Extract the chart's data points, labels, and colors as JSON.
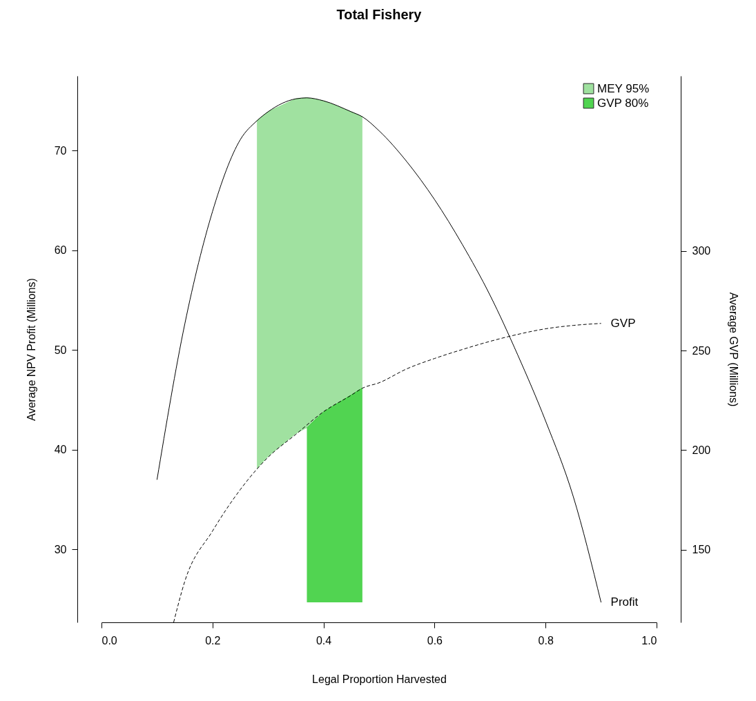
{
  "chart_data": {
    "type": "line",
    "title": "Total Fishery",
    "xlabel": "Legal Proportion Harvested",
    "ylabel": "Average NPV Profit (Millions)",
    "y2label": "Average GVP (Millions)",
    "xlim": [
      0,
      1
    ],
    "xticks": [
      {
        "value": 0,
        "label": "0.0"
      },
      0.2,
      0.4,
      0.6,
      0.8,
      {
        "value": 1,
        "label": "1.0"
      }
    ],
    "ylim": [
      22.7,
      77.5
    ],
    "yticks": [
      30,
      40,
      50,
      60,
      70
    ],
    "y2lim": [
      113.6,
      387.8
    ],
    "y2ticks": [
      150,
      200,
      250,
      300
    ],
    "grid": false,
    "legend": "top right",
    "series": [
      {
        "name": "MEY 95%",
        "color": "#8fdc8f",
        "x": [
          0.28,
          0.3,
          0.35,
          0.37,
          0.4,
          0.45,
          0.47
        ],
        "values": [
          73.0,
          73.9,
          75.2,
          75.3,
          75.0,
          73.9,
          73.4
        ],
        "upper": [
          73.0,
          73.9,
          75.2,
          75.3,
          75.0,
          73.9,
          73.4
        ],
        "lower": [
          38.1,
          39.3,
          41.6,
          42.2,
          43.8,
          45.5,
          46.2
        ]
      },
      {
        "name": "GVP 80%",
        "color": "#32cd32",
        "x": [
          0.37,
          0.4,
          0.45,
          0.47
        ],
        "values": [
          42.2,
          43.8,
          45.5,
          46.2
        ],
        "upper": [
          42.2,
          43.8,
          45.5,
          46.2
        ],
        "lower": [
          24.7,
          24.7,
          24.7,
          24.7
        ]
      },
      {
        "name": "Profit",
        "color": "#000000",
        "line_style": "solid",
        "x": [
          0.1,
          0.15,
          0.2,
          0.25,
          0.28,
          0.3,
          0.35,
          0.37,
          0.4,
          0.45,
          0.47,
          0.5,
          0.55,
          0.6,
          0.65,
          0.7,
          0.75,
          0.8,
          0.85,
          0.9
        ],
        "values": [
          37.0,
          52.6,
          63.9,
          71.1,
          73.0,
          73.9,
          75.2,
          75.3,
          75.0,
          73.9,
          73.4,
          72.0,
          68.9,
          65.1,
          60.6,
          55.5,
          49.5,
          42.9,
          35.3,
          24.7
        ]
      },
      {
        "name": "GVP",
        "color": "#000000",
        "line_style": "dashed",
        "axis": "y2",
        "x": [
          0.13,
          0.15,
          0.2,
          0.25,
          0.28,
          0.3,
          0.35,
          0.4,
          0.45,
          0.47,
          0.5,
          0.55,
          0.6,
          0.65,
          0.7,
          0.75,
          0.8,
          0.85,
          0.9
        ],
        "values": [
          113.6,
          134.1,
          159.4,
          180.2,
          190.5,
          196.4,
          207.9,
          219.3,
          227.6,
          231.1,
          233.8,
          240.8,
          246.0,
          250.5,
          254.6,
          258.1,
          260.9,
          262.6,
          263.6
        ]
      }
    ]
  }
}
